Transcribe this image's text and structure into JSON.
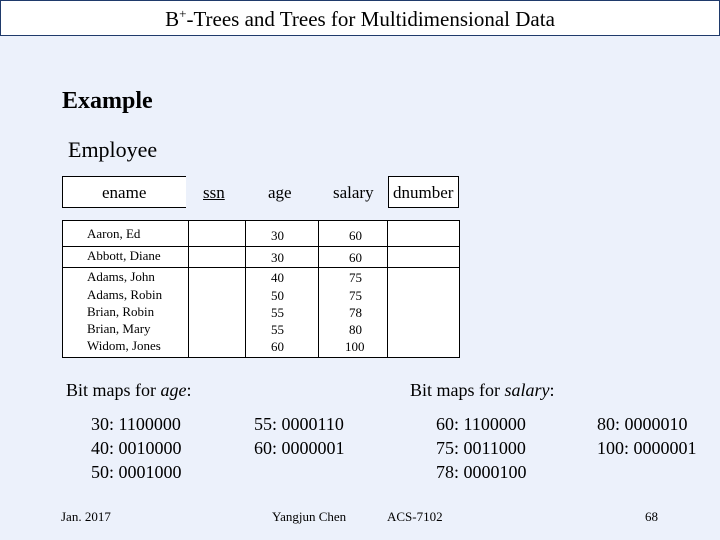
{
  "slide": {
    "title_prefix": "B",
    "title_sup": "+",
    "title_rest": "-Trees and Trees for Multidimensional Data",
    "heading": "Example",
    "relation": "Employee"
  },
  "table": {
    "columns": [
      "ename",
      "ssn",
      "age",
      "salary",
      "dnumber"
    ],
    "rows": [
      {
        "ename": "Aaron, Ed",
        "age": "30",
        "salary": "60"
      },
      {
        "ename": "Abbott, Diane",
        "age": "30",
        "salary": "60"
      },
      {
        "ename": "Adams, John",
        "age": "40",
        "salary": "75"
      },
      {
        "ename": "Adams, Robin",
        "age": "50",
        "salary": "75"
      },
      {
        "ename": "Brian, Robin",
        "age": "55",
        "salary": "78"
      },
      {
        "ename": "Brian, Mary",
        "age": "55",
        "salary": "80"
      },
      {
        "ename": "Widom, Jones",
        "age": "60",
        "salary": "100"
      }
    ]
  },
  "bitmaps": {
    "age_prefix": "Bit maps for ",
    "age_attr": "age",
    "salary_prefix": "Bit maps for ",
    "salary_attr": "salary",
    "colon": ":",
    "age_left": [
      "30: 1100000",
      "40: 0010000",
      "50: 0001000"
    ],
    "age_right": [
      "55: 0000110",
      "60: 0000001"
    ],
    "salary_left": [
      "60: 1100000",
      "75: 0011000",
      "78: 0000100"
    ],
    "salary_right": [
      "80: 0000010",
      "100: 0000001"
    ]
  },
  "footer": {
    "date": "Jan. 2017",
    "author": "Yangjun Chen",
    "course": "ACS-7102",
    "page": "68"
  }
}
